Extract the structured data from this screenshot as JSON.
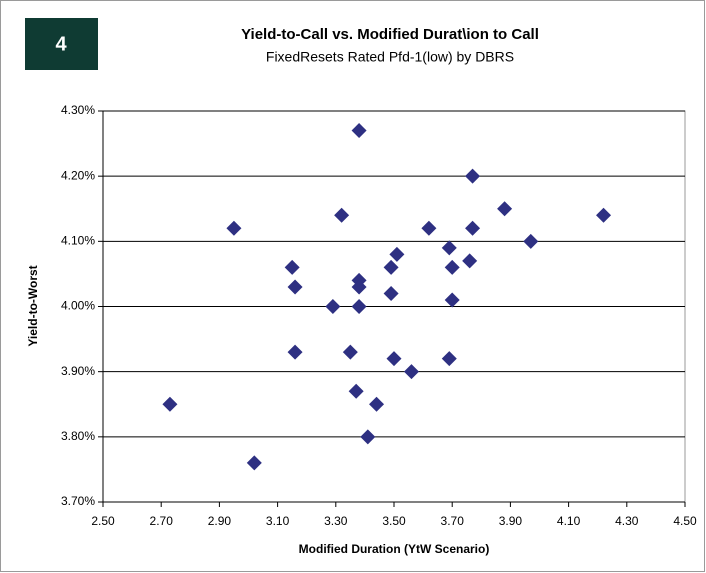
{
  "chart_data": {
    "type": "scatter",
    "badge": "4",
    "title": "Yield-to-Call vs. Modified Durat\\ion to Call",
    "subtitle": "FixedResets Rated Pfd-1(low) by DBRS",
    "x_label": "Modified Duration (YtW Scenario)",
    "y_label": "Yield-to-Worst",
    "color": "#2e3082",
    "grid": true,
    "xlim": [
      2.5,
      4.5
    ],
    "ylim": [
      3.7,
      4.3
    ],
    "xticks": [
      {
        "value": 2.5,
        "label": "2.50"
      },
      {
        "value": 2.7,
        "label": "2.70"
      },
      {
        "value": 2.9,
        "label": "2.90"
      },
      {
        "value": 3.1,
        "label": "3.10"
      },
      {
        "value": 3.3,
        "label": "3.30"
      },
      {
        "value": 3.5,
        "label": "3.50"
      },
      {
        "value": 3.7,
        "label": "3.70"
      },
      {
        "value": 3.9,
        "label": "3.90"
      },
      {
        "value": 4.1,
        "label": "4.10"
      },
      {
        "value": 4.3,
        "label": "4.30"
      },
      {
        "value": 4.5,
        "label": "4.50"
      }
    ],
    "yticks": [
      {
        "value": 3.7,
        "label": "3.70%"
      },
      {
        "value": 3.8,
        "label": "3.80%"
      },
      {
        "value": 3.9,
        "label": "3.90%"
      },
      {
        "value": 4.0,
        "label": "4.00%"
      },
      {
        "value": 4.1,
        "label": "4.10%"
      },
      {
        "value": 4.2,
        "label": "4.20%"
      },
      {
        "value": 4.3,
        "label": "4.30%"
      }
    ],
    "x": [
      3.38,
      3.77,
      3.88,
      3.32,
      4.22,
      2.95,
      3.62,
      3.77,
      3.97,
      3.69,
      3.51,
      3.76,
      3.15,
      3.49,
      3.7,
      3.38,
      3.16,
      3.38,
      3.49,
      3.7,
      3.29,
      3.38,
      3.16,
      3.35,
      3.5,
      3.69,
      3.56,
      3.37,
      2.73,
      3.44,
      3.41,
      3.02
    ],
    "values": [
      4.27,
      4.2,
      4.15,
      4.14,
      4.14,
      4.12,
      4.12,
      4.12,
      4.1,
      4.09,
      4.08,
      4.07,
      4.06,
      4.06,
      4.06,
      4.04,
      4.03,
      4.03,
      4.02,
      4.01,
      4.0,
      4.0,
      3.93,
      3.93,
      3.92,
      3.92,
      3.9,
      3.87,
      3.85,
      3.85,
      3.8,
      3.76
    ]
  }
}
